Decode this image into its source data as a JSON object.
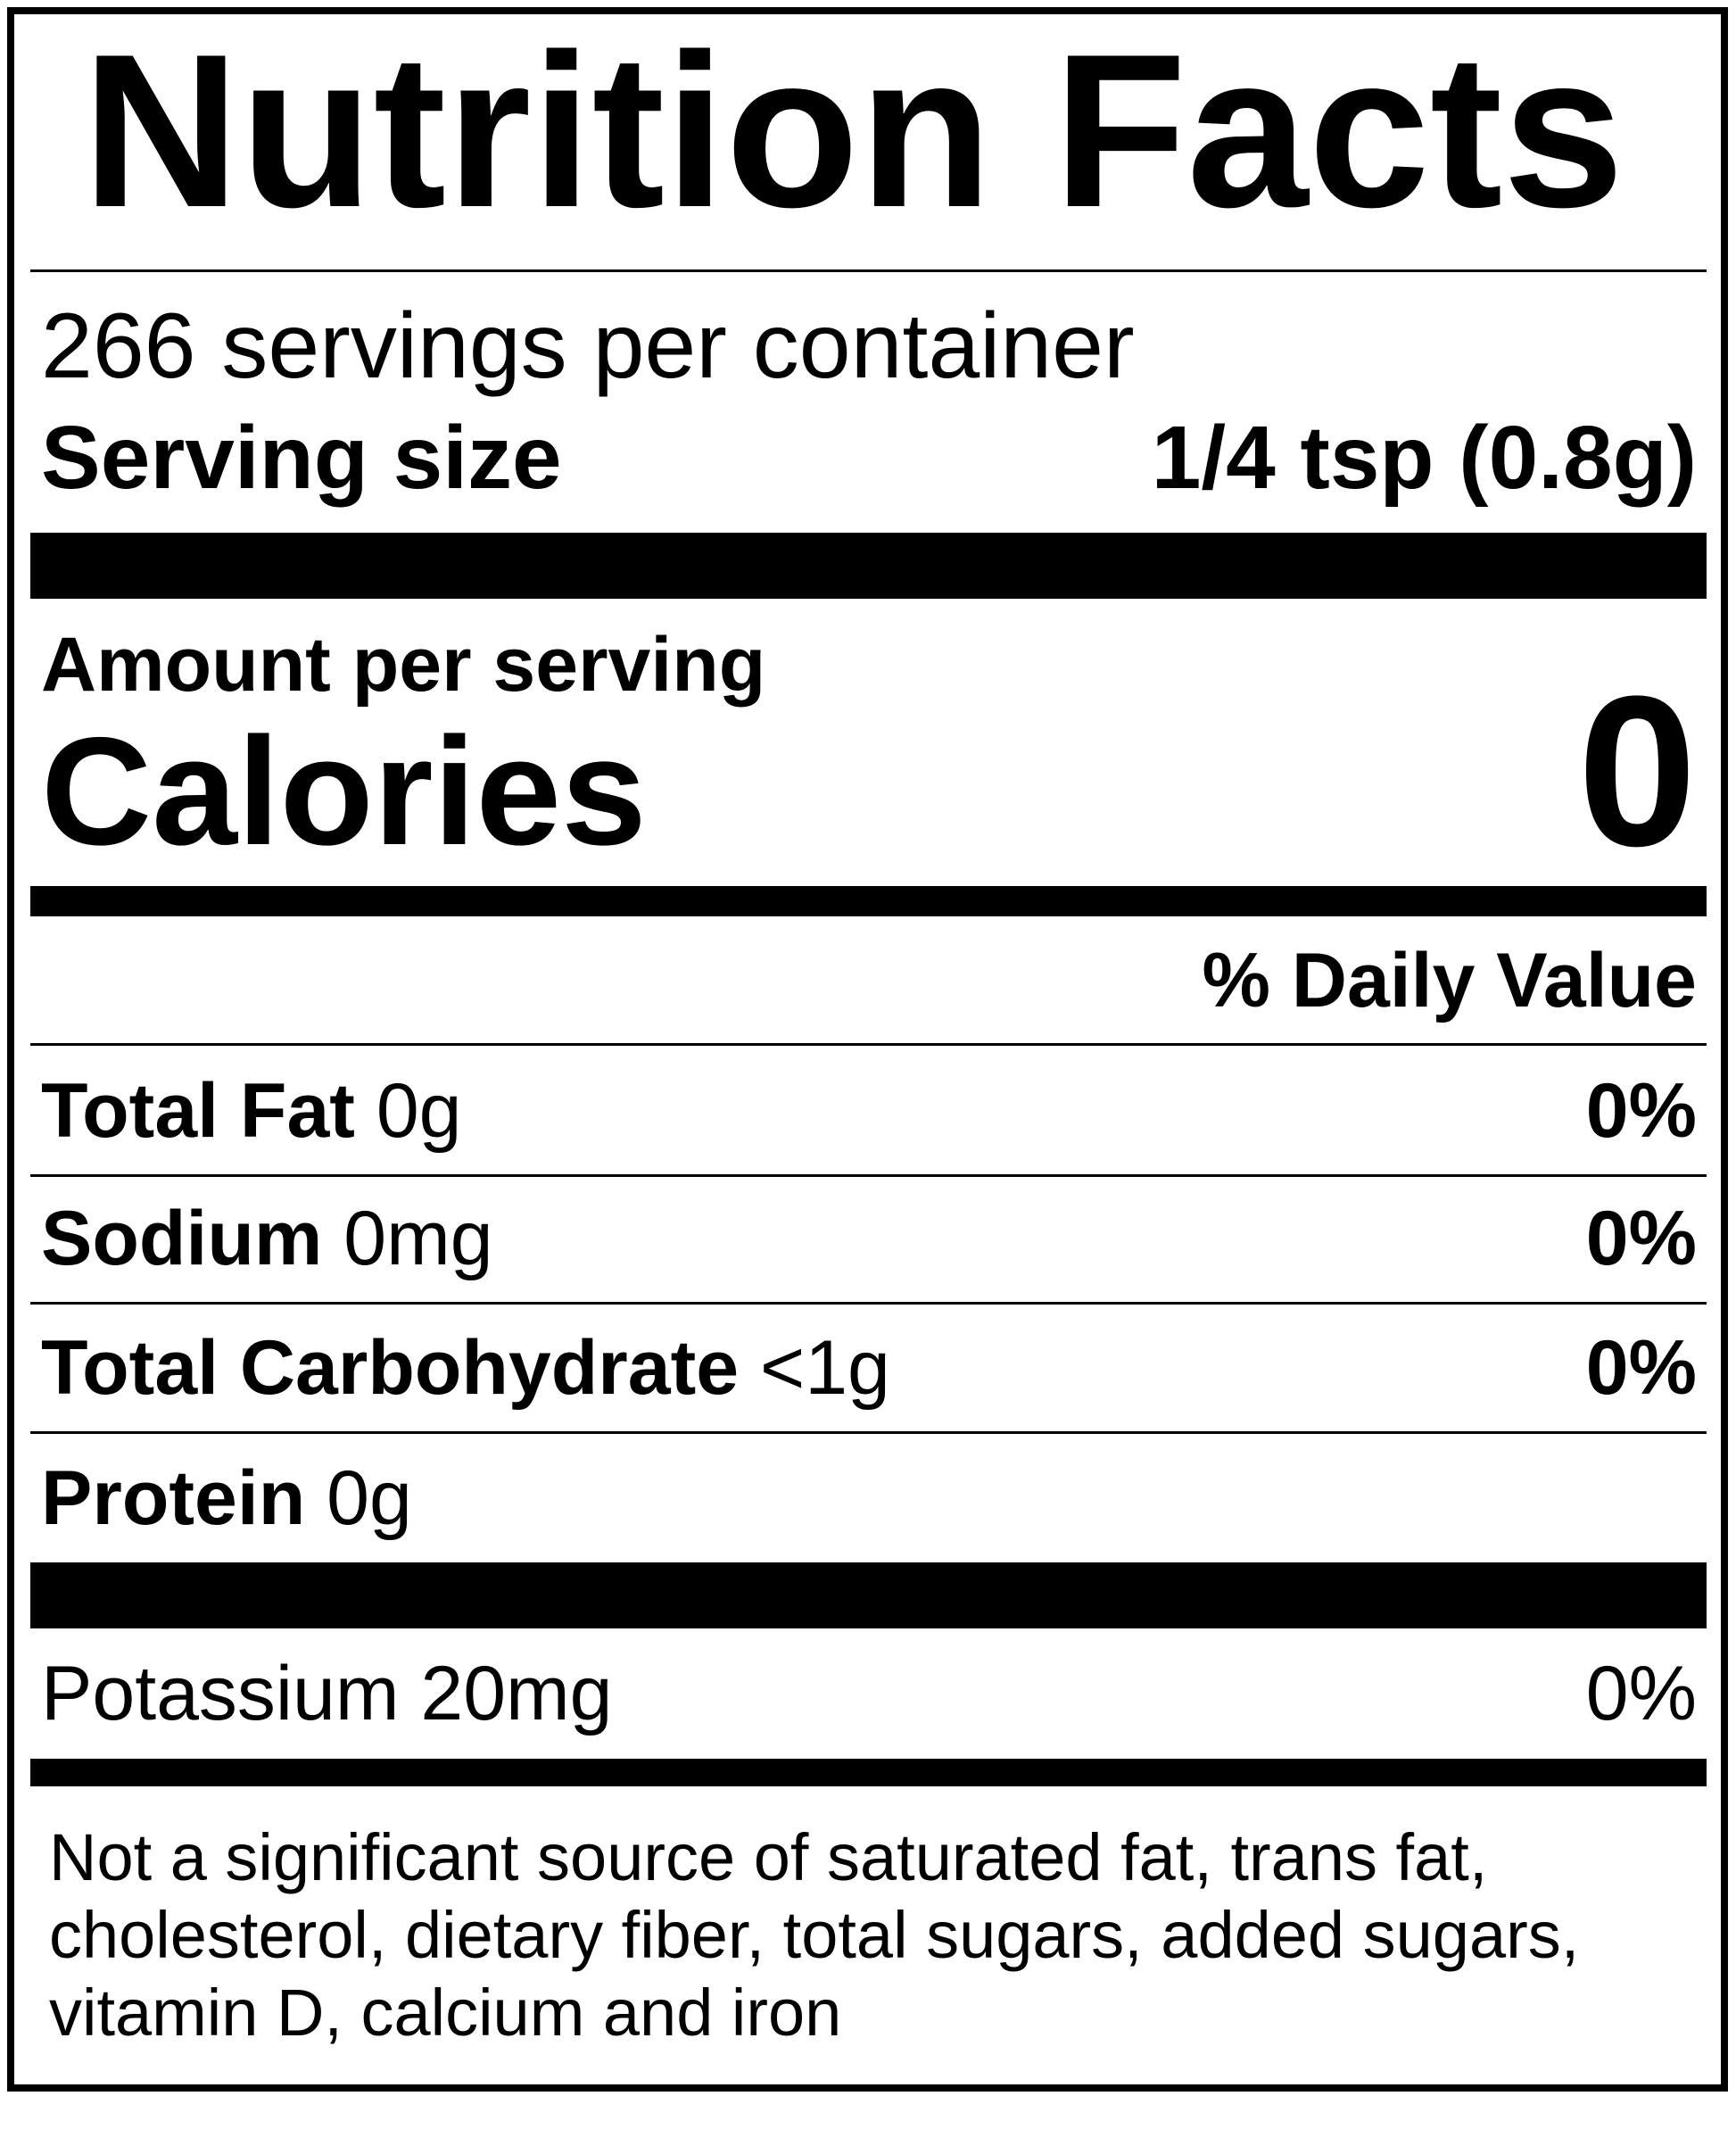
{
  "title": "Nutrition Facts",
  "servings_per_container": "266 servings per container",
  "serving_size": {
    "label": "Serving size",
    "value": "1/4 tsp (0.8g)"
  },
  "amount_per_serving": "Amount per serving",
  "calories": {
    "label": "Calories",
    "value": "0"
  },
  "daily_value_header": "% Daily Value",
  "nutrients": [
    {
      "name": "Total Fat",
      "amount": "0g",
      "dv": "0%"
    },
    {
      "name": "Sodium",
      "amount": "0mg",
      "dv": "0%"
    },
    {
      "name": "Total Carbohydrate",
      "amount": "<1g",
      "dv": "0%"
    },
    {
      "name": "Protein",
      "amount": "0g"
    }
  ],
  "potassium": {
    "label": "Potassium 20mg",
    "dv": "0%"
  },
  "footnote": "Not a significant source of saturated fat, trans fat, cholesterol, dietary fiber, total sugars, added sugars, vitamin D, calcium and iron"
}
